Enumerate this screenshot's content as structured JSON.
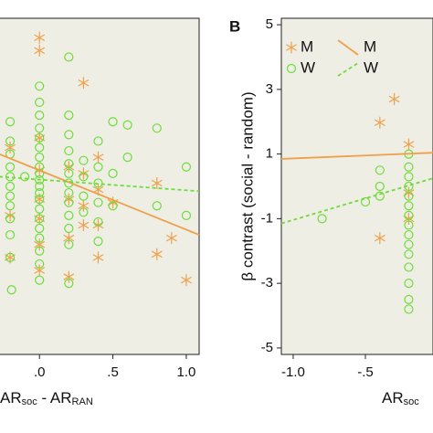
{
  "chart_data": [
    {
      "type": "scatter",
      "xlim": [
        -0.275,
        1.0875
      ],
      "ylim": [
        -5.2,
        5.2
      ],
      "xticks": [
        {
          "value": 0,
          "label": ".0"
        },
        {
          "value": 0.5,
          "label": ".5"
        },
        {
          "value": 1.0,
          "label": "1.0"
        }
      ],
      "xlabel_parts": [
        "AR",
        "soc",
        " - AR",
        "RAN"
      ],
      "series": [
        {
          "color": "#f0a04b",
          "marker": "star",
          "x": [
            0,
            0,
            0,
            0,
            0,
            0,
            0,
            0,
            -0.2,
            -0.2,
            -0.2,
            0.2,
            0.2,
            0.2,
            0.2,
            0.3,
            0.3,
            0.3,
            0.3,
            0.4,
            0.4,
            0.4,
            0.4,
            0.5,
            0.8,
            0.8,
            1.0,
            0.9
          ],
          "y": [
            4.6,
            4.2,
            1.5,
            0.5,
            -0.4,
            -1.0,
            -1.8,
            -2.6,
            1.2,
            -0.9,
            -2.2,
            0.6,
            -0.4,
            -1.6,
            -2.8,
            3.2,
            0.4,
            -0.6,
            -1.2,
            0.9,
            -0.1,
            -1.2,
            -2.2,
            -0.5,
            0.1,
            -2.1,
            -2.9,
            -1.6
          ]
        },
        {
          "color": "#6fdc3c",
          "marker": "circle",
          "x": [
            0,
            0,
            0,
            0,
            0,
            0,
            0,
            0,
            0,
            0,
            0,
            0,
            0,
            0,
            0,
            0,
            0,
            0,
            0,
            0,
            -0.2,
            -0.2,
            -0.2,
            -0.2,
            -0.2,
            -0.2,
            -0.2,
            -0.2,
            -0.2,
            -0.2,
            -0.2,
            -0.19,
            0.2,
            0.2,
            0.2,
            0.2,
            0.2,
            0.2,
            0.2,
            0.2,
            0.2,
            0.2,
            0.2,
            0.2,
            0.2,
            0.3,
            0.3,
            0.3,
            0.3,
            0.4,
            0.4,
            0.4,
            0.4,
            0.4,
            0.4,
            0.5,
            0.5,
            0.5,
            0.6,
            0.6,
            0.8,
            0.8,
            1.0,
            1.0,
            -0.1
          ],
          "y": [
            3.1,
            2.6,
            2.2,
            1.8,
            1.5,
            1.2,
            0.9,
            0.6,
            0.4,
            0.2,
            0,
            -0.2,
            -0.4,
            -0.7,
            -1.0,
            -1.3,
            -1.6,
            -2.0,
            -2.4,
            -2.9,
            2.0,
            1.4,
            1.0,
            0.6,
            0.3,
            0,
            -0.3,
            -0.6,
            -1.0,
            -1.5,
            -2.2,
            -3.2,
            4.0,
            2.2,
            1.6,
            1.1,
            0.7,
            0.4,
            0.1,
            -0.2,
            -0.5,
            -0.9,
            -1.3,
            -1.8,
            -3.0,
            0.8,
            0.3,
            -0.3,
            -0.8,
            1.4,
            0.6,
            0.1,
            -0.5,
            -1.1,
            -1.7,
            2.0,
            0.4,
            -0.6,
            1.9,
            0.9,
            1.8,
            -0.6,
            0.6,
            -0.9,
            0.3
          ]
        }
      ],
      "fits": [
        {
          "color": "#f0a04b",
          "dash": false,
          "x": [
            -0.275,
            1.0875
          ],
          "y": [
            1.0,
            -1.5
          ]
        },
        {
          "color": "#6fdc3c",
          "dash": true,
          "x": [
            -0.275,
            1.0875
          ],
          "y": [
            0.3,
            -0.15
          ]
        }
      ]
    },
    {
      "type": "scatter",
      "panel_label": "B",
      "xlim": [
        -1.082,
        -0.032
      ],
      "ylim": [
        -5.2,
        5.2
      ],
      "xticks": [
        {
          "value": -1.0,
          "label": "-1.0"
        },
        {
          "value": -0.5,
          "label": "-.5"
        }
      ],
      "yticks": [
        5,
        3,
        1,
        -1,
        -3,
        -5
      ],
      "ylabel": "β contrast (social - random)",
      "xlabel_parts": [
        "AR",
        "soc"
      ],
      "legend": "upper left",
      "series": [
        {
          "name": "M",
          "color": "#f0a04b",
          "marker": "star",
          "x": [
            -0.4,
            -0.4,
            -0.3,
            -0.2,
            -0.2,
            -0.2
          ],
          "y": [
            1.97,
            -1.6,
            2.7,
            1.3,
            -0.2,
            -1.0
          ]
        },
        {
          "name": "W",
          "color": "#6fdc3c",
          "marker": "circle",
          "x": [
            -0.8,
            -0.5,
            -0.4,
            -0.4,
            -0.4,
            -0.2,
            -0.2,
            -0.2,
            -0.2,
            -0.2,
            -0.2,
            -0.2,
            -0.2,
            -0.2,
            -0.2,
            -0.2,
            -0.2,
            -0.2,
            -0.2,
            -0.2
          ],
          "y": [
            -1.0,
            -0.48,
            0.5,
            0,
            -0.3,
            1.0,
            0.6,
            0.3,
            0,
            -0.3,
            -0.6,
            -0.9,
            -1.2,
            -1.5,
            -1.8,
            -2.1,
            -2.5,
            -3.0,
            -3.5,
            -3.8
          ]
        }
      ],
      "fits": [
        {
          "name": "M",
          "color": "#f0a04b",
          "dash": false,
          "x": [
            -1.082,
            -0.032
          ],
          "y": [
            0.85,
            1.04
          ]
        },
        {
          "name": "W",
          "color": "#6fdc3c",
          "dash": true,
          "x": [
            -1.082,
            -0.032
          ],
          "y": [
            -1.15,
            0.25
          ]
        }
      ]
    }
  ]
}
